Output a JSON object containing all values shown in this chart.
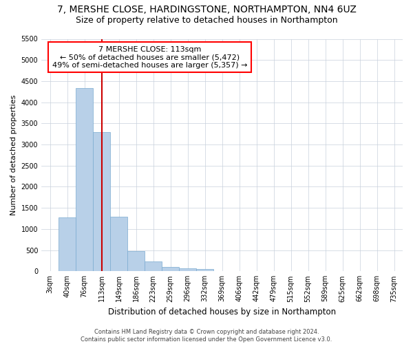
{
  "title1": "7, MERSHE CLOSE, HARDINGSTONE, NORTHAMPTON, NN4 6UZ",
  "title2": "Size of property relative to detached houses in Northampton",
  "xlabel": "Distribution of detached houses by size in Northampton",
  "ylabel": "Number of detached properties",
  "footnote": "Contains HM Land Registry data © Crown copyright and database right 2024.\nContains public sector information licensed under the Open Government Licence v3.0.",
  "annotation_line1": "7 MERSHE CLOSE: 113sqm",
  "annotation_line2": "← 50% of detached houses are smaller (5,472)",
  "annotation_line3": "49% of semi-detached houses are larger (5,357) →",
  "marker_idx": 3,
  "bar_color": "#b8d0e8",
  "bar_edge_color": "#7aaad0",
  "marker_line_color": "#cc0000",
  "grid_color": "#c8d0dc",
  "background_color": "#ffffff",
  "categories": [
    "3sqm",
    "40sqm",
    "76sqm",
    "113sqm",
    "149sqm",
    "186sqm",
    "223sqm",
    "259sqm",
    "296sqm",
    "332sqm",
    "369sqm",
    "406sqm",
    "442sqm",
    "479sqm",
    "515sqm",
    "552sqm",
    "589sqm",
    "625sqm",
    "662sqm",
    "698sqm",
    "735sqm"
  ],
  "values": [
    0,
    1270,
    4340,
    3290,
    1290,
    480,
    240,
    110,
    75,
    60,
    0,
    0,
    0,
    0,
    0,
    0,
    0,
    0,
    0,
    0,
    0
  ],
  "ylim": [
    0,
    5500
  ],
  "yticks": [
    0,
    500,
    1000,
    1500,
    2000,
    2500,
    3000,
    3500,
    4000,
    4500,
    5000,
    5500
  ],
  "title1_fontsize": 10,
  "title2_fontsize": 9,
  "xlabel_fontsize": 8.5,
  "ylabel_fontsize": 8,
  "tick_fontsize": 7,
  "annot_fontsize": 8,
  "footnote_fontsize": 6
}
